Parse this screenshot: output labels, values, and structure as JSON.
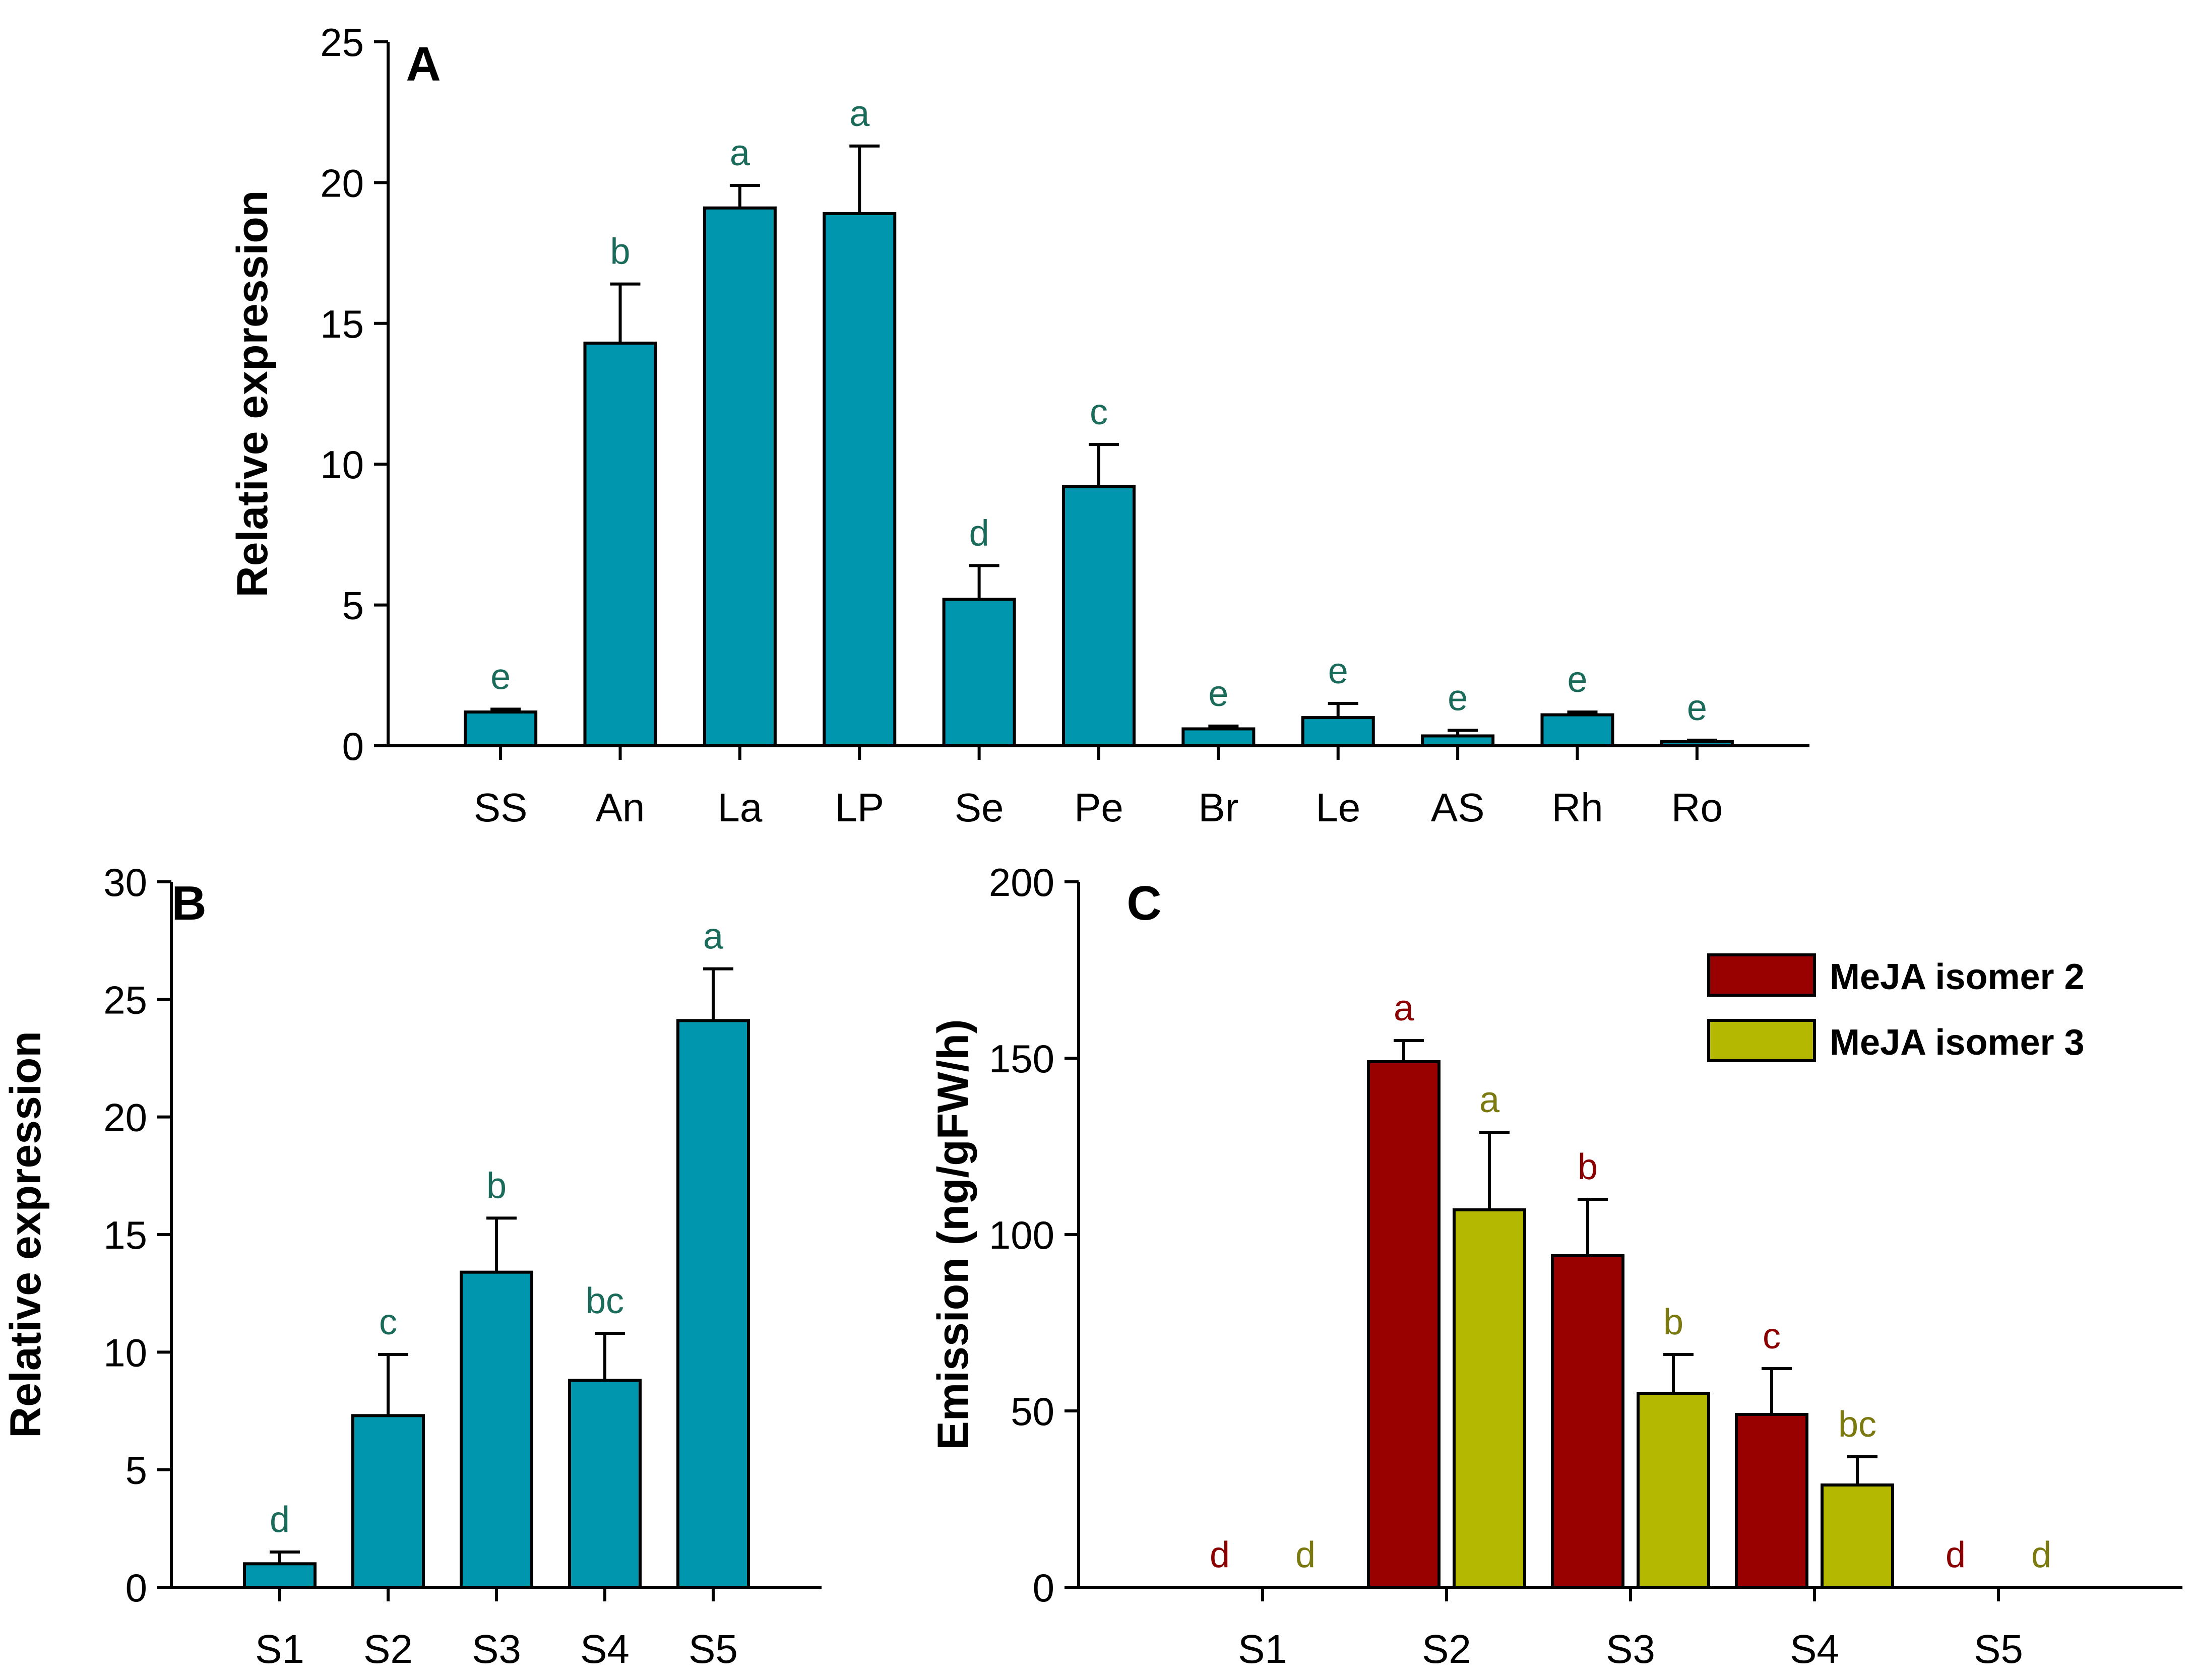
{
  "colors": {
    "bar_teal": "#0096AE",
    "isomer2": "#990000",
    "isomer3": "#B5B800",
    "sig_teal": "#1B6B5B",
    "sig_red": "#8A0000",
    "sig_olive": "#7A7A10",
    "axis": "#000000"
  },
  "chart_data": [
    {
      "panel": "A",
      "type": "bar",
      "ylabel": "Relative expression",
      "ylim": [
        0,
        25
      ],
      "yticks": [
        0,
        5,
        10,
        15,
        20,
        25
      ],
      "categories": [
        "SS",
        "An",
        "La",
        "LP",
        "Se",
        "Pe",
        "Br",
        "Le",
        "AS",
        "Rh",
        "Ro"
      ],
      "series": [
        {
          "name": "expression",
          "color": "#0096AE",
          "sig_color": "#1B6B5B",
          "values": [
            1.2,
            14.3,
            19.1,
            18.9,
            5.2,
            9.2,
            0.6,
            1.0,
            0.35,
            1.1,
            0.15
          ],
          "errors": [
            0.1,
            2.1,
            0.8,
            2.4,
            1.2,
            1.5,
            0.1,
            0.5,
            0.2,
            0.1,
            0.05
          ],
          "sig": [
            "e",
            "b",
            "a",
            "a",
            "d",
            "c",
            "e",
            "e",
            "e",
            "e",
            "e"
          ]
        }
      ]
    },
    {
      "panel": "B",
      "type": "bar",
      "ylabel": "Relative expression",
      "ylim": [
        0,
        30
      ],
      "yticks": [
        0,
        5,
        10,
        15,
        20,
        25,
        30
      ],
      "categories": [
        "S1",
        "S2",
        "S3",
        "S4",
        "S5"
      ],
      "series": [
        {
          "name": "expression",
          "color": "#0096AE",
          "sig_color": "#1B6B5B",
          "values": [
            1.0,
            7.3,
            13.4,
            8.8,
            24.1
          ],
          "errors": [
            0.5,
            2.6,
            2.3,
            2.0,
            2.2
          ],
          "sig": [
            "d",
            "c",
            "b",
            "bc",
            "a"
          ]
        }
      ]
    },
    {
      "panel": "C",
      "type": "bar",
      "ylabel": "Emission (ng/gFW/h)",
      "ylim": [
        0,
        200
      ],
      "yticks": [
        0,
        50,
        100,
        150,
        200
      ],
      "categories": [
        "S1",
        "S2",
        "S3",
        "S4",
        "S5"
      ],
      "legend_position": "top-right",
      "series": [
        {
          "name": "MeJA isomer 2",
          "color": "#990000",
          "sig_color": "#8A0000",
          "values": [
            0,
            149,
            94,
            49,
            0
          ],
          "errors": [
            0,
            6,
            16,
            13,
            0
          ],
          "sig": [
            "d",
            "a",
            "b",
            "c",
            "d"
          ]
        },
        {
          "name": "MeJA isomer 3",
          "color": "#B5B800",
          "sig_color": "#7A7A10",
          "values": [
            0,
            107,
            55,
            29,
            0
          ],
          "errors": [
            0,
            22,
            11,
            8,
            0
          ],
          "sig": [
            "d",
            "a",
            "b",
            "bc",
            "d"
          ]
        }
      ]
    }
  ]
}
